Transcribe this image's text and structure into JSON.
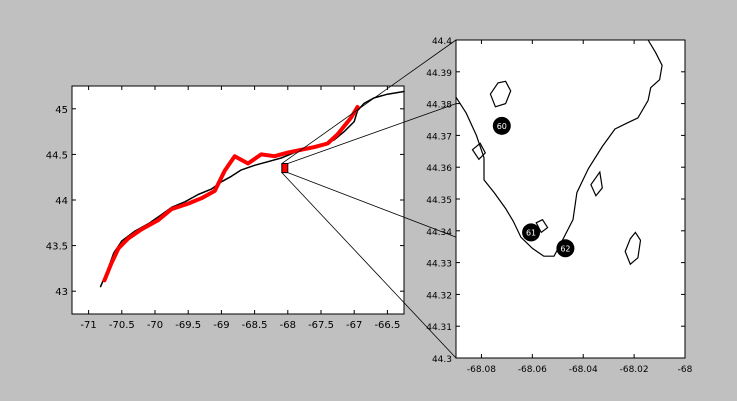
{
  "figure": {
    "background_color": "#c0c0c0",
    "coast_color": "#000000",
    "highlight_color": "#ff0000",
    "marker_color": "#000000",
    "marker_text_color": "#ffffff"
  },
  "chart_data": [
    {
      "type": "scatter",
      "title": "",
      "xlabel": "",
      "ylabel": "",
      "xlim": [
        -71.25,
        -66.25
      ],
      "ylim": [
        42.75,
        45.25
      ],
      "grid": false,
      "xticks": [
        -71,
        -70.5,
        -70,
        -69.5,
        -69,
        -68.5,
        -68,
        -67.5,
        -67,
        -66.5
      ],
      "yticks": [
        43,
        43.5,
        44,
        44.5,
        45
      ],
      "xtick_labels": [
        "-71",
        "-70.5",
        "-70",
        "-69.5",
        "-69",
        "-68.5",
        "-68",
        "-67.5",
        "-67",
        "-66.5"
      ],
      "ytick_labels": [
        "43",
        "43.5",
        "44",
        "44.5",
        "45"
      ],
      "series": [
        {
          "role": "coastline",
          "color": "#000000",
          "points": [
            [
              -70.82,
              43.05
            ],
            [
              -70.72,
              43.22
            ],
            [
              -70.62,
              43.42
            ],
            [
              -70.5,
              43.55
            ],
            [
              -70.3,
              43.66
            ],
            [
              -70.1,
              43.74
            ],
            [
              -69.9,
              43.84
            ],
            [
              -69.75,
              43.92
            ],
            [
              -69.55,
              43.98
            ],
            [
              -69.35,
              44.06
            ],
            [
              -69.15,
              44.12
            ],
            [
              -69.0,
              44.2
            ],
            [
              -68.85,
              44.26
            ],
            [
              -68.7,
              44.33
            ],
            [
              -68.5,
              44.38
            ],
            [
              -68.3,
              44.42
            ],
            [
              -68.1,
              44.46
            ],
            [
              -67.9,
              44.52
            ],
            [
              -67.7,
              44.56
            ],
            [
              -67.5,
              44.6
            ],
            [
              -67.3,
              44.66
            ],
            [
              -67.15,
              44.75
            ],
            [
              -67.0,
              44.86
            ],
            [
              -66.95,
              44.98
            ],
            [
              -66.85,
              45.06
            ],
            [
              -66.7,
              45.12
            ],
            [
              -66.5,
              45.16
            ],
            [
              -66.25,
              45.19
            ]
          ]
        },
        {
          "role": "highlighted-coast",
          "color": "#ff0000",
          "points": [
            [
              -70.76,
              43.12
            ],
            [
              -70.66,
              43.3
            ],
            [
              -70.55,
              43.47
            ],
            [
              -70.4,
              43.58
            ],
            [
              -70.2,
              43.68
            ],
            [
              -69.95,
              43.78
            ],
            [
              -69.75,
              43.9
            ],
            [
              -69.5,
              43.96
            ],
            [
              -69.3,
              44.02
            ],
            [
              -69.1,
              44.1
            ],
            [
              -68.95,
              44.32
            ],
            [
              -68.8,
              44.48
            ],
            [
              -68.6,
              44.4
            ],
            [
              -68.4,
              44.5
            ],
            [
              -68.2,
              44.48
            ],
            [
              -68.0,
              44.52
            ],
            [
              -67.8,
              44.55
            ],
            [
              -67.6,
              44.58
            ],
            [
              -67.4,
              44.62
            ],
            [
              -67.25,
              44.72
            ],
            [
              -67.05,
              44.9
            ],
            [
              -66.95,
              45.02
            ]
          ]
        }
      ],
      "zoom_box": {
        "x": [
          -68.09,
          -68.0
        ],
        "y": [
          44.3,
          44.4
        ],
        "color": "#ff0000"
      }
    },
    {
      "type": "scatter",
      "title": "",
      "xlabel": "",
      "ylabel": "",
      "xlim": [
        -68.09,
        -68.0
      ],
      "ylim": [
        44.3,
        44.4
      ],
      "grid": false,
      "xticks": [
        -68.08,
        -68.06,
        -68.04,
        -68.02,
        -68.0
      ],
      "yticks": [
        44.3,
        44.31,
        44.32,
        44.33,
        44.34,
        44.35,
        44.36,
        44.37,
        44.38,
        44.39,
        44.4
      ],
      "xtick_labels": [
        "-68.08",
        "-68.06",
        "-68.04",
        "-68.02",
        "-68"
      ],
      "ytick_labels": [
        "44.3",
        "44.31",
        "44.32",
        "44.33",
        "44.34",
        "44.35",
        "44.36",
        "44.37",
        "44.38",
        "44.39",
        "44.4"
      ],
      "points": [
        {
          "label": "60",
          "x": -68.072,
          "y": 44.373
        },
        {
          "label": "61",
          "x": -68.0605,
          "y": 44.3395
        },
        {
          "label": "62",
          "x": -68.047,
          "y": 44.3345
        }
      ],
      "coastline": {
        "color": "#000000",
        "points": [
          [
            -68.09,
            44.382
          ],
          [
            -68.086,
            44.377
          ],
          [
            -68.082,
            44.37
          ],
          [
            -68.079,
            44.363
          ],
          [
            -68.079,
            44.356
          ],
          [
            -68.075,
            44.352
          ],
          [
            -68.0705,
            44.347
          ],
          [
            -68.0675,
            44.343
          ],
          [
            -68.0645,
            44.338
          ],
          [
            -68.06,
            44.3345
          ],
          [
            -68.0555,
            44.332
          ],
          [
            -68.0515,
            44.332
          ],
          [
            -68.0485,
            44.3365
          ],
          [
            -68.044,
            44.3435
          ],
          [
            -68.0425,
            44.352
          ],
          [
            -68.038,
            44.3595
          ],
          [
            -68.0325,
            44.3665
          ],
          [
            -68.0275,
            44.372
          ],
          [
            -68.0225,
            44.374
          ],
          [
            -68.0185,
            44.3755
          ],
          [
            -68.0145,
            44.381
          ],
          [
            -68.0135,
            44.385
          ],
          [
            -68.01,
            44.3875
          ],
          [
            -68.009,
            44.392
          ],
          [
            -68.0115,
            44.396
          ],
          [
            -68.0145,
            44.4
          ]
        ]
      },
      "islands": [
        [
          [
            -68.0765,
            44.383
          ],
          [
            -68.0735,
            44.3865
          ],
          [
            -68.0705,
            44.387
          ],
          [
            -68.0685,
            44.384
          ],
          [
            -68.0705,
            44.38
          ],
          [
            -68.0745,
            44.379
          ],
          [
            -68.0765,
            44.383
          ]
        ],
        [
          [
            -68.0835,
            44.3655
          ],
          [
            -68.0805,
            44.3675
          ],
          [
            -68.0785,
            44.3645
          ],
          [
            -68.081,
            44.3625
          ],
          [
            -68.0835,
            44.3655
          ]
        ],
        [
          [
            -68.0585,
            44.3425
          ],
          [
            -68.056,
            44.3435
          ],
          [
            -68.054,
            44.341
          ],
          [
            -68.0565,
            44.3395
          ],
          [
            -68.0585,
            44.3425
          ]
        ],
        [
          [
            -68.0195,
            44.3395
          ],
          [
            -68.0175,
            44.337
          ],
          [
            -68.0185,
            44.3315
          ],
          [
            -68.0215,
            44.3295
          ],
          [
            -68.0235,
            44.3335
          ],
          [
            -68.0215,
            44.3375
          ],
          [
            -68.0195,
            44.3395
          ]
        ],
        [
          [
            -68.0335,
            44.3585
          ],
          [
            -68.0325,
            44.3535
          ],
          [
            -68.035,
            44.351
          ],
          [
            -68.037,
            44.3545
          ],
          [
            -68.0335,
            44.3585
          ]
        ]
      ]
    }
  ]
}
